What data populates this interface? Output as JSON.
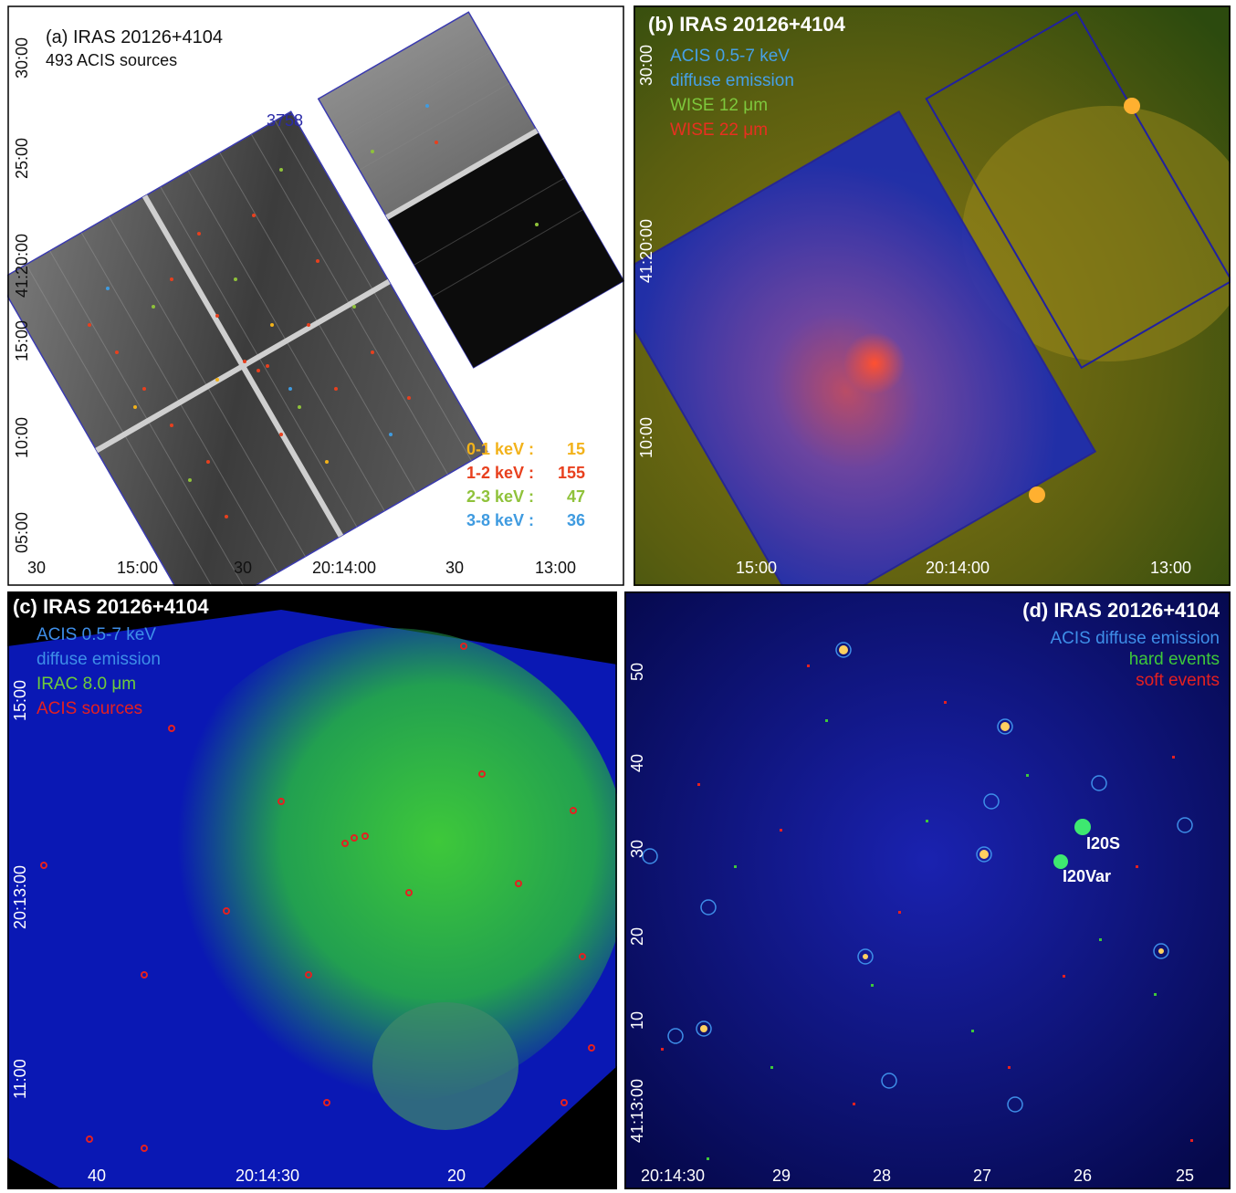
{
  "panels": {
    "a": {
      "title": "(a) IRAS 20126+4104",
      "subtitle": "493 ACIS sources",
      "obsid": "3758",
      "bands": [
        {
          "label": "0-1 keV :",
          "count": "15",
          "color": "#f2b21a"
        },
        {
          "label": "1-2 keV :",
          "count": "155",
          "color": "#e8401e"
        },
        {
          "label": "2-3 keV :",
          "count": "47",
          "color": "#8fc23a"
        },
        {
          "label": "3-8 keV :",
          "count": "36",
          "color": "#3f9be0"
        }
      ],
      "x_ticks": [
        "30",
        "15:00",
        "30",
        "20:14:00",
        "30",
        "13:00"
      ],
      "y_ticks": [
        "30:00",
        "25:00",
        "41:20:00",
        "15:00",
        "10:00",
        "05:00"
      ]
    },
    "b": {
      "title": "(b) IRAS 20126+4104",
      "legend": [
        {
          "text": "ACIS 0.5-7 keV",
          "color": "#46a0e6"
        },
        {
          "text": "diffuse emission",
          "color": "#46a0e6"
        },
        {
          "text": "WISE 12 μm",
          "color": "#7ec83c"
        },
        {
          "text": "WISE 22 μm",
          "color": "#e83020"
        }
      ],
      "x_ticks": [
        "15:00",
        "20:14:00",
        "13:00"
      ],
      "y_ticks": [
        "30:00",
        "41:20:00",
        "10:00"
      ]
    },
    "c": {
      "title": "(c) IRAS 20126+4104",
      "legend": [
        {
          "text": "ACIS 0.5-7 keV",
          "color": "#3e8ee8"
        },
        {
          "text": "diffuse emission",
          "color": "#3e8ee8"
        },
        {
          "text": "IRAC 8.0 μm",
          "color": "#6ecc3a"
        },
        {
          "text": "ACIS sources",
          "color": "#e52020"
        }
      ],
      "x_ticks": [
        "40",
        "20:14:30",
        "20"
      ],
      "y_ticks": [
        "15:00",
        "20:13:00",
        "11:00"
      ]
    },
    "d": {
      "title": "(d) IRAS 20126+4104",
      "legend": [
        {
          "text": "ACIS diffuse emission",
          "color": "#3e8ee8"
        },
        {
          "text": "hard events",
          "color": "#3ec83a"
        },
        {
          "text": "soft events",
          "color": "#e52020"
        }
      ],
      "labels": [
        "I20S",
        "I20Var"
      ],
      "x_ticks": [
        "20:14:30",
        "29",
        "28",
        "27",
        "26",
        "25"
      ],
      "y_ticks": [
        "50",
        "40",
        "30",
        "20",
        "10",
        "41:13:00"
      ]
    }
  }
}
